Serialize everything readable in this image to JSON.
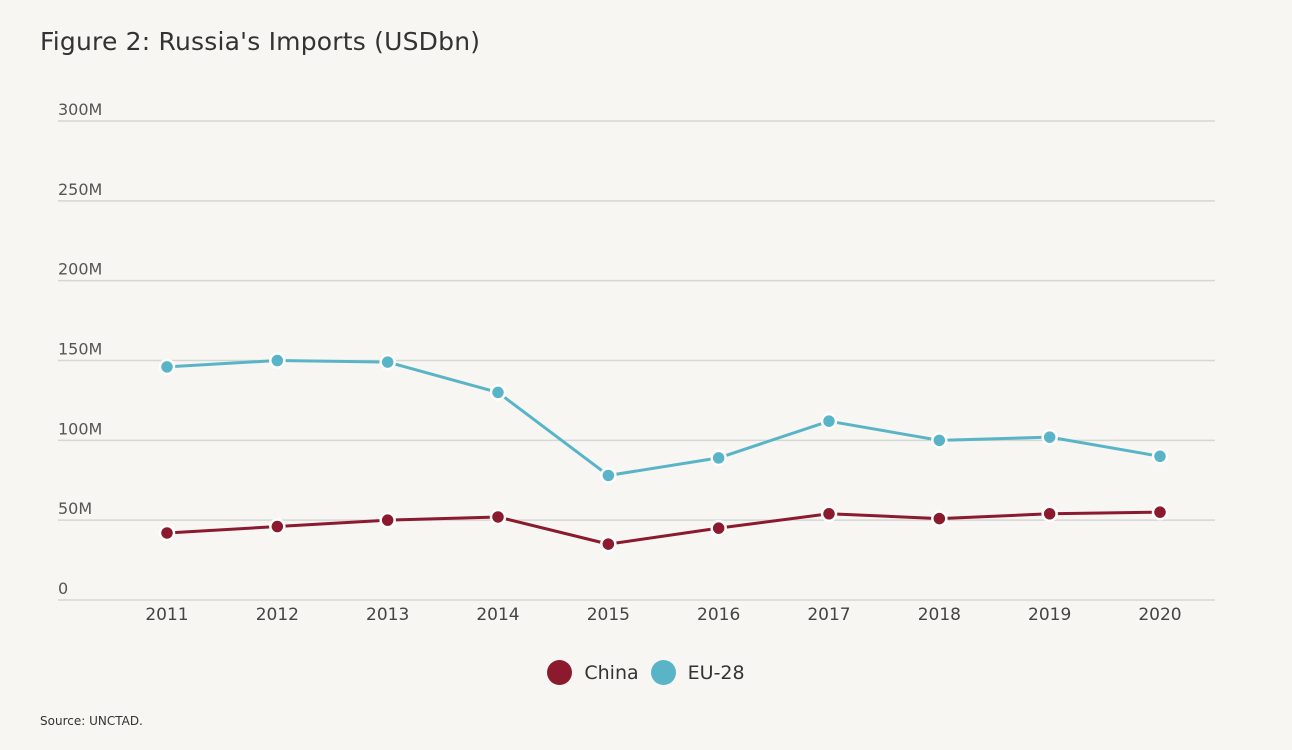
{
  "chart_data": {
    "type": "line",
    "title": "Figure 2: Russia's Imports (USDbn)",
    "xlabel": "",
    "ylabel": "",
    "x": [
      "2011",
      "2012",
      "2013",
      "2014",
      "2015",
      "2016",
      "2017",
      "2018",
      "2019",
      "2020"
    ],
    "ylim": [
      0,
      300
    ],
    "yticks": [
      0,
      50,
      100,
      150,
      200,
      250,
      300
    ],
    "ytick_labels": [
      "0",
      "50M",
      "100M",
      "150M",
      "200M",
      "250M",
      "300M"
    ],
    "grid": true,
    "legend_position": "bottom-center",
    "series": [
      {
        "name": "China",
        "color": "#8c1a2e",
        "values": [
          42,
          46,
          50,
          52,
          35,
          45,
          54,
          51,
          54,
          55
        ]
      },
      {
        "name": "EU-28",
        "color": "#5ab4c8",
        "values": [
          146,
          150,
          149,
          130,
          78,
          89,
          112,
          100,
          102,
          90
        ]
      }
    ]
  },
  "source": "Source: UNCTAD."
}
